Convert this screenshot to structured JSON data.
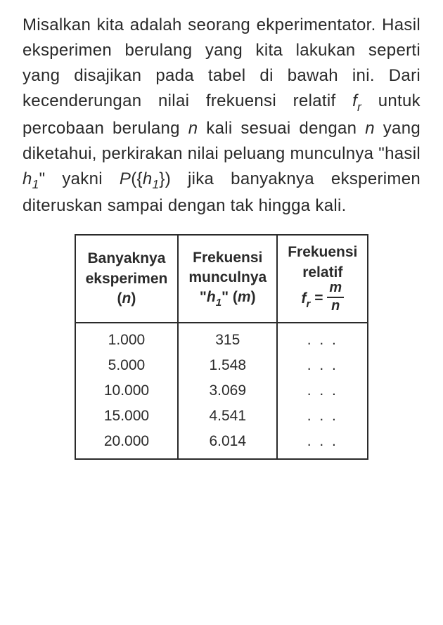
{
  "passage": {
    "text_color": "#2a2a2a",
    "fontsize": 24,
    "lines": [
      "Misalkan kita adalah seorang ekperimentator. Hasil eksperimen berulang yang kita lakukan seperti yang disajikan pada tabel di bawah ini. Dari kecenderungan nilai frekuensi relatif ",
      " untuk percobaan berulang ",
      " kali sesuai dengan ",
      " yang diketahui, perkirakan nilai peluang munculnya \"hasil ",
      "\" yakni ",
      "(",
      ") jika banyaknya eksperimen diteruskan sampai dengan tak hingga kali."
    ],
    "sym_fr": "f",
    "sym_fr_sub": "r",
    "sym_n": "n",
    "sym_h1": "h",
    "sym_h1_sub": "1",
    "sym_P": "P",
    "sym_set_open": "{",
    "sym_set_close": "}"
  },
  "table": {
    "border_color": "#2a2a2a",
    "header_fontsize": 21,
    "cell_fontsize": 21,
    "columns": [
      {
        "line1": "Banyaknya",
        "line2": "eksperimen",
        "line3_open": "(",
        "line3_sym": "n",
        "line3_close": ")"
      },
      {
        "line1": "Frekuensi",
        "line2": "munculnya",
        "line3_open": "\"",
        "line3_sym": "h",
        "line3_sub": "1",
        "line3_close": "\" (",
        "line3_sym2": "m",
        "line3_close2": ")"
      },
      {
        "line1": "Frekuensi",
        "line2": "relatif",
        "fr_sym": "f",
        "fr_sub": "r",
        "eq": " = ",
        "frac_num": "m",
        "frac_den": "n"
      }
    ],
    "rows": [
      {
        "n": "1.000",
        "m": "315",
        "fr": ". . ."
      },
      {
        "n": "5.000",
        "m": "1.548",
        "fr": ". . ."
      },
      {
        "n": "10.000",
        "m": "3.069",
        "fr": ". . ."
      },
      {
        "n": "15.000",
        "m": "4.541",
        "fr": ". . ."
      },
      {
        "n": "20.000",
        "m": "6.014",
        "fr": ". . ."
      }
    ]
  }
}
